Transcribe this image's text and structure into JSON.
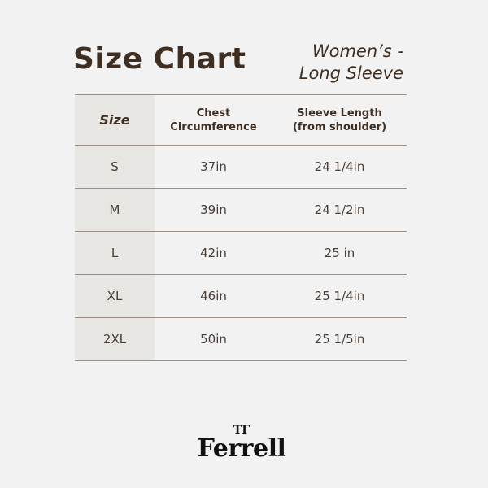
{
  "header": {
    "title": "Size Chart",
    "subtitle_line1": "Women’s -",
    "subtitle_line2": "Long Sleeve"
  },
  "table": {
    "columns": [
      "Size",
      "Chest Circumference",
      "Sleeve Length",
      "(from shoulder)"
    ],
    "rows": [
      {
        "size": "S",
        "chest": "37in",
        "sleeve": "24 1/4in"
      },
      {
        "size": "M",
        "chest": "39in",
        "sleeve": "24 1/2in"
      },
      {
        "size": "L",
        "chest": "42in",
        "sleeve": "25 in"
      },
      {
        "size": "XL",
        "chest": "46in",
        "sleeve": "25 1/4in"
      },
      {
        "size": "2XL",
        "chest": "50in",
        "sleeve": "25 1/5in"
      }
    ]
  },
  "brand": {
    "name": "Ferrell",
    "mark": "TT"
  },
  "colors": {
    "text": "#3f2e22",
    "background": "#f2f2f2",
    "size_column": "#e8e6e2",
    "rule": "#9a8e86"
  }
}
